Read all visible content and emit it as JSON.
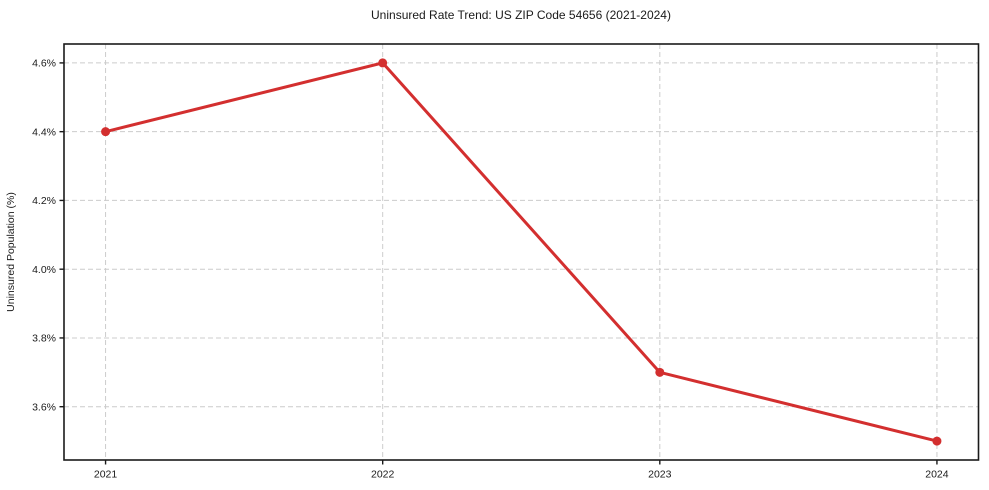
{
  "chart_data": {
    "type": "line",
    "title": "Uninsured Rate Trend: US ZIP Code 54656 (2021-2024)",
    "xlabel": "",
    "ylabel": "Uninsured Population (%)",
    "x": [
      2021,
      2022,
      2023,
      2024
    ],
    "x_tick_labels": [
      "2021",
      "2022",
      "2023",
      "2024"
    ],
    "y_ticks": [
      3.6,
      3.8,
      4.0,
      4.2,
      4.4,
      4.6
    ],
    "y_tick_labels": [
      "3.6%",
      "3.8%",
      "4.0%",
      "4.2%",
      "4.4%",
      "4.6%"
    ],
    "series": [
      {
        "name": "Uninsured Rate",
        "values": [
          4.4,
          4.6,
          3.7,
          3.5
        ]
      }
    ],
    "xlim": [
      2020.85,
      2024.15
    ],
    "ylim": [
      3.445,
      4.655
    ],
    "grid": true,
    "legend_visible": false,
    "line_color": "#d32f2f",
    "marker_color": "#d32f2f",
    "grid_color": "#cccccc",
    "frame_color": "#1a1a1a",
    "background_color": "#ffffff"
  }
}
